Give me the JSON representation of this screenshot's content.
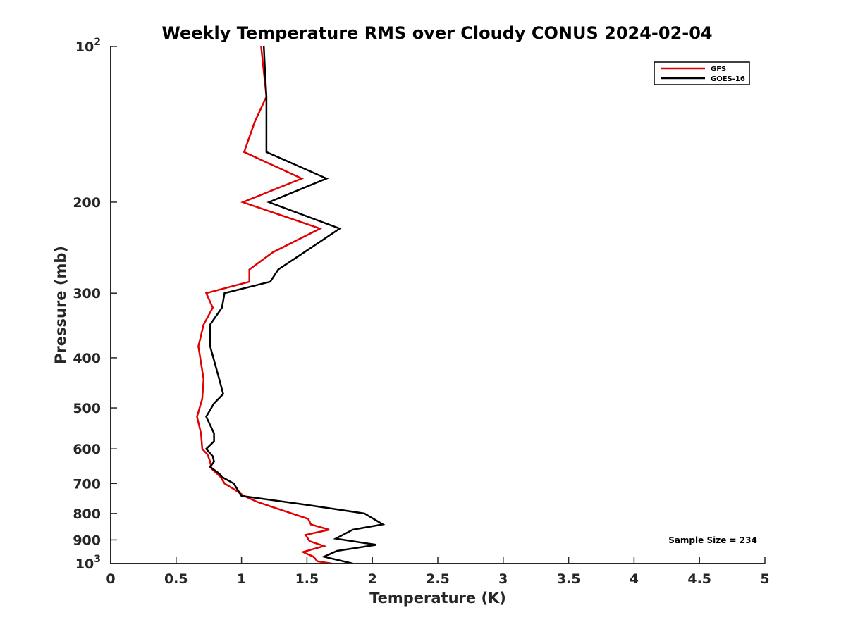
{
  "chart_data": {
    "type": "line",
    "title": "Weekly Temperature RMS over Cloudy CONUS 2024-02-04",
    "xlabel": "Temperature (K)",
    "ylabel": "Pressure (mb)",
    "xlim": [
      0,
      5
    ],
    "ylim": [
      100,
      1000
    ],
    "y_scale": "log",
    "y_reversed": true,
    "grid": false,
    "legend_position": "top-right",
    "x_ticks": [
      "0",
      "0.5",
      "1",
      "1.5",
      "2",
      "2.5",
      "3",
      "3.5",
      "4",
      "4.5",
      "5"
    ],
    "y_ticks": [
      {
        "value": 100,
        "base": "10",
        "exp": "2"
      },
      {
        "value": 200,
        "label": "200"
      },
      {
        "value": 300,
        "label": "300"
      },
      {
        "value": 400,
        "label": "400"
      },
      {
        "value": 500,
        "label": "500"
      },
      {
        "value": 600,
        "label": "600"
      },
      {
        "value": 700,
        "label": "700"
      },
      {
        "value": 800,
        "label": "800"
      },
      {
        "value": 900,
        "label": "900"
      },
      {
        "value": 1000,
        "base": "10",
        "exp": "3"
      }
    ],
    "annotation": "Sample Size = 234",
    "series": [
      {
        "name": "GFS",
        "color": "#e00000",
        "x": [
          1.15,
          1.17,
          1.19,
          1.1,
          1.02,
          1.46,
          1.01,
          1.6,
          1.24,
          1.06,
          1.06,
          0.73,
          0.78,
          0.71,
          0.67,
          0.71,
          0.7,
          0.66,
          0.69,
          0.7,
          0.74,
          0.76,
          0.77,
          0.84,
          0.87,
          0.95,
          1.02,
          1.12,
          1.51,
          1.53,
          1.67,
          1.49,
          1.52,
          1.63,
          1.47,
          1.55,
          1.58,
          1.69
        ],
        "y": [
          100,
          112,
          125,
          140,
          160,
          180,
          200,
          225,
          250,
          270,
          285,
          300,
          320,
          345,
          380,
          440,
          480,
          520,
          560,
          600,
          615,
          635,
          655,
          680,
          700,
          720,
          740,
          760,
          820,
          840,
          860,
          880,
          905,
          925,
          950,
          970,
          990,
          1000
        ]
      },
      {
        "name": "GOES-16",
        "color": "#000000",
        "x": [
          1.17,
          1.18,
          1.19,
          1.19,
          1.19,
          1.65,
          1.21,
          1.75,
          1.48,
          1.28,
          1.22,
          0.87,
          0.85,
          0.76,
          0.76,
          0.83,
          0.86,
          0.79,
          0.73,
          0.79,
          0.79,
          0.73,
          0.78,
          0.79,
          0.76,
          0.83,
          0.85,
          0.94,
          1.0,
          1.5,
          1.94,
          2.08,
          1.85,
          1.72,
          2.03,
          1.73,
          1.63,
          1.85
        ],
        "y": [
          100,
          112,
          125,
          140,
          160,
          180,
          200,
          225,
          250,
          270,
          285,
          300,
          320,
          345,
          380,
          440,
          470,
          490,
          520,
          560,
          580,
          600,
          620,
          635,
          650,
          670,
          680,
          700,
          740,
          770,
          800,
          840,
          860,
          895,
          920,
          945,
          970,
          1000
        ]
      }
    ]
  }
}
